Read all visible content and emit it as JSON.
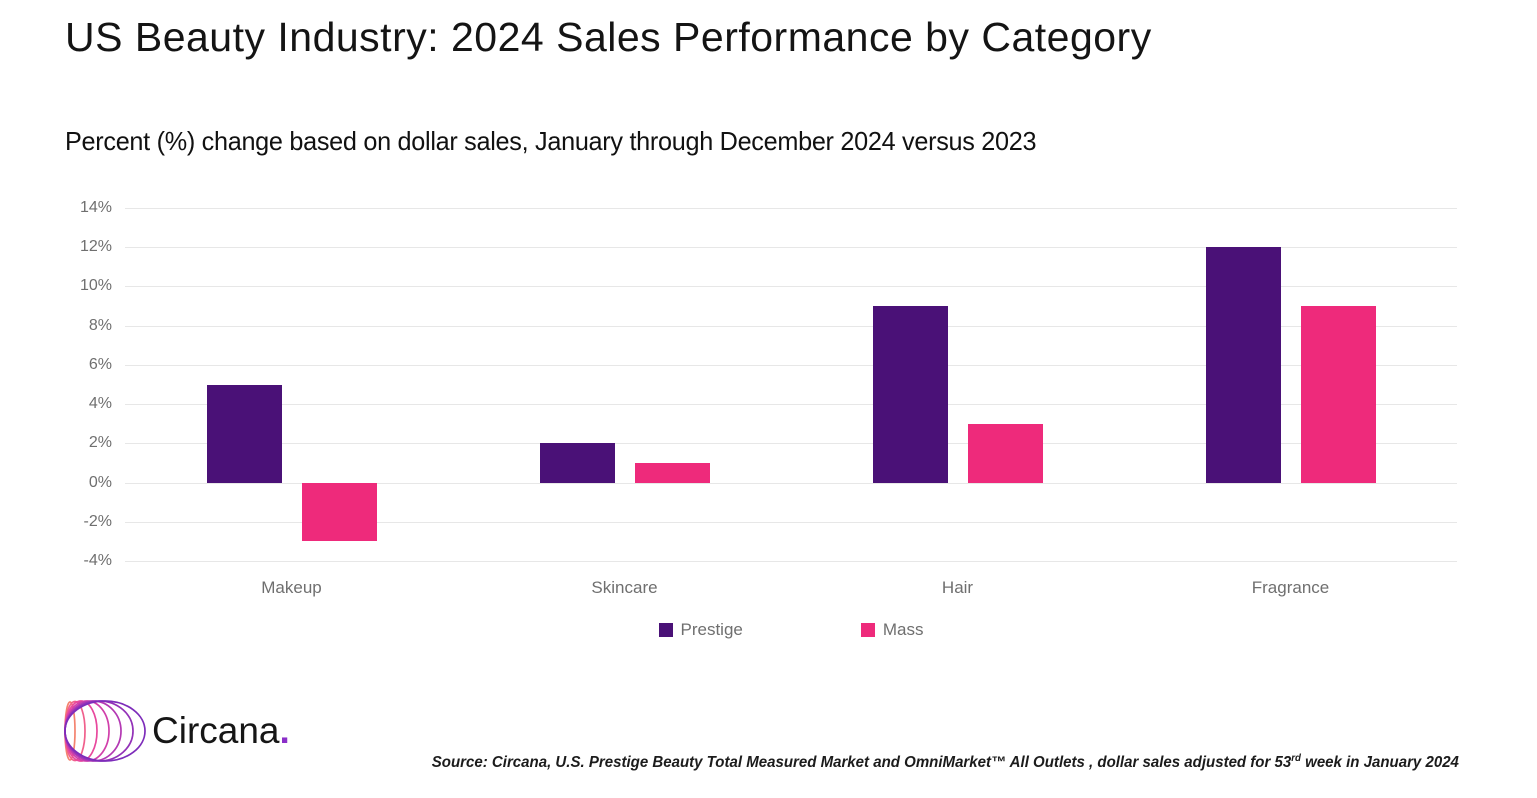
{
  "header": {
    "title": "US Beauty Industry: 2024 Sales Performance by Category",
    "subtitle": "Percent (%) change based on dollar sales, January through December 2024 versus 2023"
  },
  "chart_data": {
    "type": "bar",
    "categories": [
      "Makeup",
      "Skincare",
      "Hair",
      "Fragrance"
    ],
    "series": [
      {
        "name": "Prestige",
        "color": "#4a1177",
        "values": [
          5,
          2,
          9,
          12
        ]
      },
      {
        "name": "Mass",
        "color": "#ee2a7b",
        "values": [
          -3,
          1,
          3,
          9
        ]
      }
    ],
    "title": "US Beauty Industry: 2024 Sales Performance by Category",
    "xlabel": "",
    "ylabel": "",
    "ylim": [
      -4,
      14
    ],
    "ytick_step": 2,
    "ytick_suffix": "%",
    "grid": true,
    "legend_position": "bottom"
  },
  "footer": {
    "logo_text": "Circana",
    "logo_dot": ".",
    "source_part1": "Source: Circana, U.S. Prestige Beauty Total Measured Market and OmniMarket™ All Outlets , dollar sales adjusted for 53",
    "source_sup": "rd",
    "source_part2": " week in January 2024"
  },
  "colors": {
    "prestige": "#4a1177",
    "mass": "#ee2a7b",
    "gridline": "#e7e7e7",
    "axis_text": "#6f6f6f",
    "logo_dot": "#8b2fc9"
  }
}
